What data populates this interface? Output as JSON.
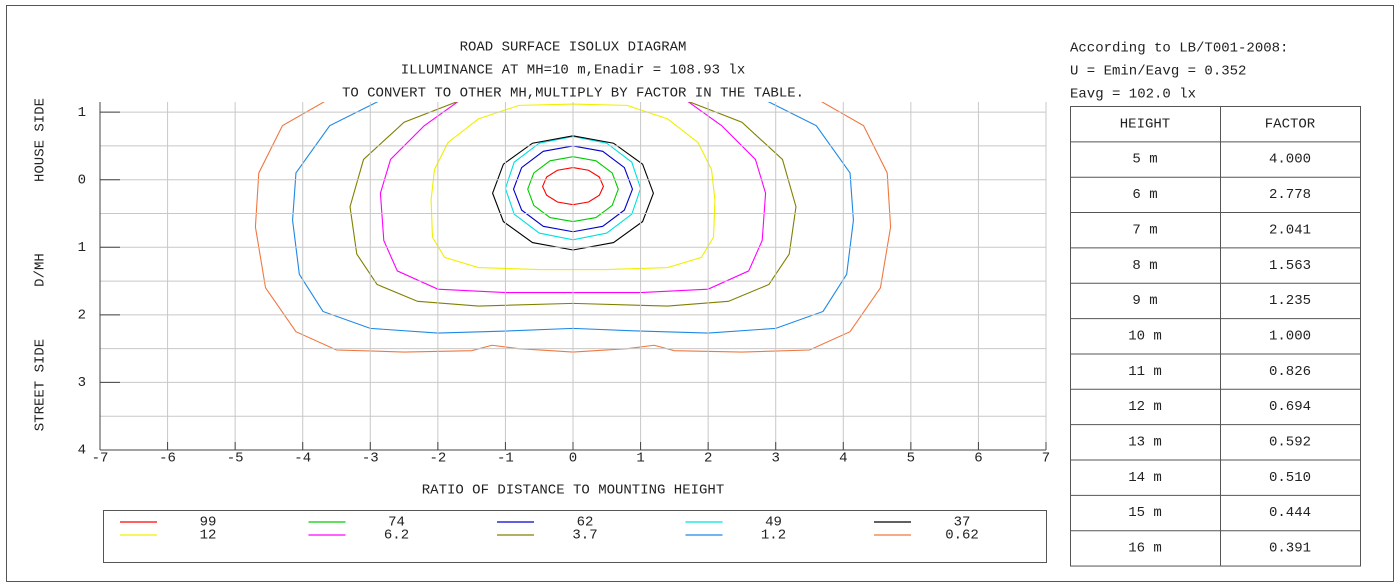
{
  "chart_data": {
    "type": "contour",
    "title": [
      "ROAD SURFACE ISOLUX DIAGRAM",
      "ILLUMINANCE AT MH=10 m,Enadir  = 108.93 lx",
      "TO CONVERT TO OTHER MH,MULTIPLY BY FACTOR IN THE TABLE."
    ],
    "xlabel": "RATIO OF DISTANCE TO MOUNTING HEIGHT",
    "ylabel": [
      "STREET SIDE",
      "D/MH",
      "HOUSE SIDE"
    ],
    "xlim": [
      -7,
      7
    ],
    "xticks": [
      -7,
      -6,
      -5,
      -4,
      -3,
      -2,
      -1,
      0,
      1,
      2,
      3,
      4,
      5,
      6,
      7
    ],
    "ylim": [
      -1.15,
      4
    ],
    "yticks": [
      {
        "value": -1,
        "label": "1"
      },
      0,
      1,
      2,
      3,
      4
    ],
    "ygrid": [
      -1,
      -0.5,
      0,
      0.5,
      1,
      1.5,
      2,
      2.5,
      3,
      3.5,
      4
    ],
    "grid": true,
    "series": [
      {
        "level": 99,
        "color": "#ff0000",
        "closed": true,
        "x": [
          0.45,
          0.39,
          0.23,
          0,
          -0.23,
          -0.39,
          -0.45,
          -0.39,
          -0.23,
          0,
          0.23,
          0.39
        ],
        "y": [
          0.1,
          0.23,
          0.33,
          0.37,
          0.33,
          0.23,
          0.1,
          -0.04,
          -0.14,
          -0.18,
          -0.14,
          -0.04
        ]
      },
      {
        "level": 74,
        "color": "#00cc00",
        "closed": true,
        "x": [
          0.67,
          0.58,
          0.34,
          0,
          -0.34,
          -0.58,
          -0.67,
          -0.58,
          -0.34,
          0,
          0.34,
          0.58
        ],
        "y": [
          0.14,
          0.38,
          0.56,
          0.62,
          0.56,
          0.38,
          0.14,
          -0.1,
          -0.28,
          -0.34,
          -0.28,
          -0.1
        ]
      },
      {
        "level": 62,
        "color": "#0000cc",
        "closed": true,
        "x": [
          0.88,
          0.76,
          0.44,
          0,
          -0.44,
          -0.76,
          -0.88,
          -0.76,
          -0.44,
          0,
          0.44,
          0.76
        ],
        "y": [
          0.14,
          0.45,
          0.69,
          0.77,
          0.69,
          0.45,
          0.14,
          -0.18,
          -0.42,
          -0.5,
          -0.42,
          -0.18
        ]
      },
      {
        "level": 49,
        "color": "#00e0e0",
        "closed": true,
        "x": [
          1,
          0.87,
          0.5,
          0,
          -0.5,
          -0.87,
          -1,
          -0.87,
          -0.5,
          0,
          0.5,
          0.87
        ],
        "y": [
          0.13,
          0.51,
          0.79,
          0.89,
          0.79,
          0.51,
          0.13,
          -0.26,
          -0.54,
          -0.64,
          -0.54,
          -0.26
        ]
      },
      {
        "level": 37,
        "color": "#000000",
        "closed": true,
        "x": [
          1.19,
          1.03,
          0.6,
          0,
          -0.6,
          -1.03,
          -1.19,
          -1.03,
          -0.6,
          0,
          0.6,
          1.03
        ],
        "y": [
          0.2,
          0.62,
          0.93,
          1.04,
          0.93,
          0.62,
          0.2,
          -0.23,
          -0.54,
          -0.65,
          -0.54,
          -0.23
        ]
      },
      {
        "level": 12,
        "color": "#f0f000",
        "closed": true,
        "x": [
          0,
          0.8,
          1.4,
          1.85,
          2.05,
          2.1,
          2.08,
          1.9,
          1.4,
          0.5,
          0,
          -0.5,
          -1.4,
          -1.9,
          -2.08,
          -2.1,
          -2.05,
          -1.85,
          -1.4,
          -0.8
        ],
        "y": [
          -1.12,
          -1.1,
          -0.9,
          -0.55,
          -0.15,
          0.3,
          0.85,
          1.15,
          1.3,
          1.33,
          1.33,
          1.33,
          1.3,
          1.15,
          0.85,
          0.3,
          -0.15,
          -0.55,
          -0.9,
          -1.1
        ]
      },
      {
        "level": 6.2,
        "color": "#ff00ff",
        "closed": false,
        "x": [
          -1.5,
          -2.2,
          -2.7,
          -2.85,
          -2.8,
          -2.6,
          -2.0,
          -1,
          0,
          1,
          2.0,
          2.6,
          2.8,
          2.85,
          2.7,
          2.2,
          1.5
        ],
        "y": [
          -1.3,
          -0.8,
          -0.3,
          0.2,
          0.9,
          1.35,
          1.62,
          1.67,
          1.67,
          1.67,
          1.62,
          1.35,
          0.9,
          0.2,
          -0.3,
          -0.8,
          -1.3
        ]
      },
      {
        "level": 3.7,
        "color": "#808000",
        "closed": false,
        "x": [
          -1.6,
          -2.5,
          -3.1,
          -3.3,
          -3.2,
          -2.9,
          -2.3,
          -1.4,
          0,
          1.4,
          2.3,
          2.9,
          3.2,
          3.3,
          3.1,
          2.5,
          1.6
        ],
        "y": [
          -1.2,
          -0.85,
          -0.3,
          0.4,
          1.1,
          1.55,
          1.8,
          1.87,
          1.83,
          1.87,
          1.8,
          1.55,
          1.1,
          0.4,
          -0.3,
          -0.85,
          -1.2
        ]
      },
      {
        "level": 1.2,
        "color": "#1e88e5",
        "closed": false,
        "x": [
          -2.8,
          -3.6,
          -4.1,
          -4.15,
          -4.05,
          -3.7,
          -3.0,
          -2,
          -1,
          0,
          1,
          2,
          3.0,
          3.7,
          4.05,
          4.15,
          4.1,
          3.6,
          2.8
        ],
        "y": [
          -1.2,
          -0.8,
          -0.1,
          0.6,
          1.4,
          1.95,
          2.2,
          2.27,
          2.24,
          2.2,
          2.24,
          2.27,
          2.2,
          1.95,
          1.4,
          0.6,
          -0.1,
          -0.8,
          -1.2
        ]
      },
      {
        "level": 0.62,
        "color": "#f07840",
        "closed": false,
        "x": [
          -3.6,
          -4.3,
          -4.65,
          -4.7,
          -4.55,
          -4.1,
          -3.5,
          -2.5,
          -1.5,
          -1.2,
          -0.8,
          0,
          0.8,
          1.2,
          1.5,
          2.5,
          3.5,
          4.1,
          4.55,
          4.7,
          4.65,
          4.3,
          3.6
        ],
        "y": [
          -1.2,
          -0.8,
          -0.1,
          0.7,
          1.6,
          2.25,
          2.52,
          2.55,
          2.53,
          2.45,
          2.5,
          2.55,
          2.5,
          2.45,
          2.53,
          2.55,
          2.52,
          2.25,
          1.6,
          0.7,
          -0.1,
          -0.8,
          -1.2
        ]
      }
    ]
  },
  "info": [
    "According to LB/T001-2008:",
    "U = Emin/Eavg = 0.352",
    "Eavg = 102.0 lx"
  ],
  "table": {
    "header": [
      "HEIGHT",
      "FACTOR"
    ],
    "rows": [
      [
        "5 m",
        "4.000"
      ],
      [
        "6 m",
        "2.778"
      ],
      [
        "7 m",
        "2.041"
      ],
      [
        "8 m",
        "1.563"
      ],
      [
        "9 m",
        "1.235"
      ],
      [
        "10 m",
        "1.000"
      ],
      [
        "11 m",
        "0.826"
      ],
      [
        "12 m",
        "0.694"
      ],
      [
        "13 m",
        "0.592"
      ],
      [
        "14 m",
        "0.510"
      ],
      [
        "15 m",
        "0.444"
      ],
      [
        "16 m",
        "0.391"
      ]
    ]
  }
}
